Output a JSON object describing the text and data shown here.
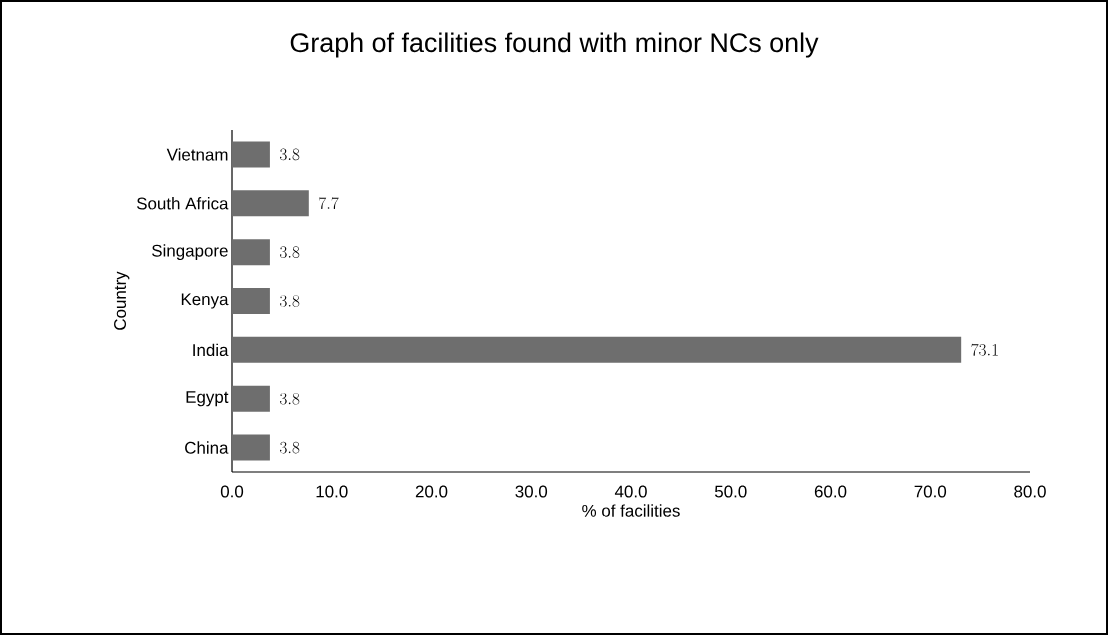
{
  "chart_data": {
    "type": "bar",
    "orientation": "horizontal",
    "title": "Graph of facilities found with minor NCs only",
    "xlabel": "% of facilities",
    "ylabel": "Country",
    "categories": [
      "Vietnam",
      "South Africa",
      "Singapore",
      "Kenya",
      "India",
      "Egypt",
      "China"
    ],
    "values": [
      3.8,
      7.7,
      3.8,
      3.8,
      73.1,
      3.8,
      3.8
    ],
    "color": "#6e6e6e",
    "data_labels": true,
    "xlim": [
      0,
      80
    ],
    "xticks": [
      {
        "value": 0,
        "label": "0.0"
      },
      {
        "value": 10,
        "label": "10.0"
      },
      {
        "value": 20,
        "label": "20.0"
      },
      {
        "value": 30,
        "label": "30.0"
      },
      {
        "value": 40,
        "label": "40.0"
      },
      {
        "value": 50,
        "label": "50.0"
      },
      {
        "value": 60,
        "label": "60.0"
      },
      {
        "value": 70,
        "label": "70.0"
      },
      {
        "value": 80,
        "label": "80.0"
      }
    ]
  }
}
